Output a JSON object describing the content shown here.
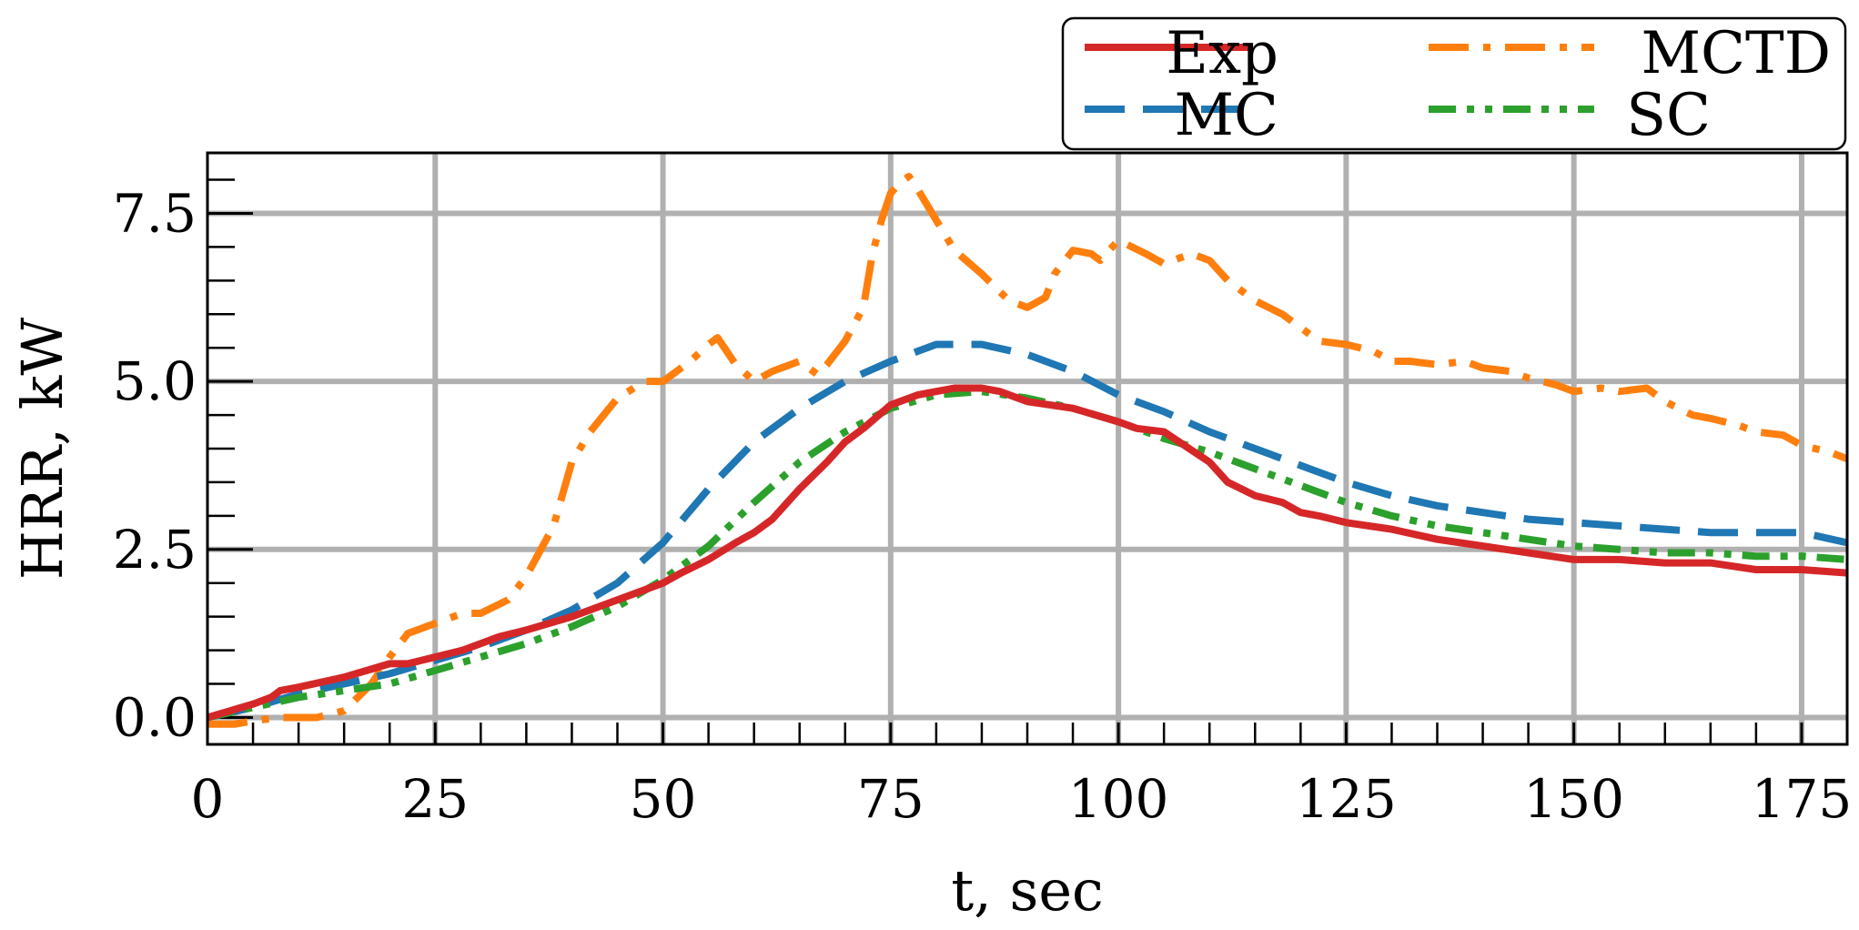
{
  "chart_data": {
    "type": "line",
    "title": "",
    "xlabel": "t, sec",
    "ylabel": "HRR, kW",
    "xlim": [
      0,
      180
    ],
    "ylim": [
      -0.4,
      8.4
    ],
    "xticks": [
      0,
      25,
      50,
      75,
      100,
      125,
      150,
      175
    ],
    "xtick_labels": [
      "0",
      "25",
      "50",
      "75",
      "100",
      "125",
      "150",
      "175"
    ],
    "yticks": [
      0.0,
      2.5,
      5.0,
      7.5
    ],
    "ytick_labels": [
      "0.0",
      "2.5",
      "5.0",
      "7.5"
    ],
    "grid": true,
    "legend_position": "top-right",
    "series": [
      {
        "name": "Exp",
        "color": "#d62728",
        "dash": "solid",
        "x": [
          0,
          5,
          7,
          8,
          10,
          15,
          20,
          22,
          25,
          28,
          30,
          32,
          35,
          40,
          45,
          50,
          52,
          55,
          58,
          60,
          62,
          65,
          68,
          70,
          72,
          75,
          78,
          80,
          82,
          85,
          87,
          90,
          95,
          100,
          102,
          105,
          110,
          112,
          115,
          118,
          120,
          122,
          125,
          130,
          135,
          140,
          145,
          150,
          155,
          160,
          165,
          170,
          175,
          180
        ],
        "y": [
          0.0,
          0.2,
          0.3,
          0.4,
          0.45,
          0.6,
          0.8,
          0.8,
          0.9,
          1.0,
          1.1,
          1.2,
          1.3,
          1.5,
          1.75,
          2.0,
          2.15,
          2.35,
          2.6,
          2.75,
          2.95,
          3.4,
          3.8,
          4.1,
          4.3,
          4.65,
          4.8,
          4.85,
          4.9,
          4.9,
          4.85,
          4.7,
          4.6,
          4.4,
          4.3,
          4.25,
          3.8,
          3.5,
          3.3,
          3.2,
          3.05,
          3.0,
          2.9,
          2.8,
          2.65,
          2.55,
          2.45,
          2.35,
          2.35,
          2.3,
          2.3,
          2.2,
          2.2,
          2.15
        ]
      },
      {
        "name": "MCTD",
        "color": "#ff7f0e",
        "dash": "dashdot",
        "x": [
          0,
          3,
          5,
          8,
          12,
          15,
          18,
          20,
          22,
          25,
          28,
          30,
          33,
          35,
          38,
          40,
          42,
          45,
          48,
          50,
          53,
          55,
          56,
          58,
          60,
          62,
          65,
          67,
          68,
          70,
          72,
          73,
          74,
          75,
          76,
          77,
          78,
          80,
          82,
          85,
          88,
          90,
          92,
          93,
          95,
          97,
          98,
          100,
          103,
          105,
          108,
          110,
          112,
          115,
          118,
          120,
          122,
          125,
          128,
          130,
          132,
          135,
          138,
          140,
          143,
          145,
          148,
          150,
          153,
          155,
          158,
          160,
          163,
          165,
          168,
          170,
          173,
          175,
          178,
          180
        ],
        "y": [
          -0.1,
          -0.1,
          -0.05,
          0.0,
          0.0,
          0.1,
          0.5,
          0.9,
          1.25,
          1.4,
          1.55,
          1.55,
          1.75,
          2.1,
          2.85,
          3.8,
          4.25,
          4.75,
          5.0,
          5.0,
          5.3,
          5.55,
          5.65,
          5.25,
          5.0,
          5.15,
          5.3,
          5.1,
          5.25,
          5.6,
          6.1,
          6.9,
          7.4,
          7.8,
          7.95,
          8.05,
          7.85,
          7.4,
          6.95,
          6.6,
          6.2,
          6.1,
          6.25,
          6.6,
          6.95,
          6.9,
          6.8,
          7.1,
          6.9,
          6.75,
          6.9,
          6.8,
          6.5,
          6.2,
          6.0,
          5.8,
          5.6,
          5.55,
          5.45,
          5.3,
          5.3,
          5.25,
          5.3,
          5.2,
          5.15,
          5.05,
          4.95,
          4.85,
          4.9,
          4.85,
          4.9,
          4.7,
          4.5,
          4.45,
          4.35,
          4.25,
          4.2,
          4.05,
          3.95,
          3.85
        ]
      },
      {
        "name": "MC",
        "color": "#1f77b4",
        "dash": "dashed",
        "x": [
          0,
          5,
          10,
          15,
          20,
          25,
          30,
          35,
          40,
          45,
          50,
          55,
          60,
          65,
          70,
          75,
          80,
          85,
          90,
          95,
          100,
          105,
          110,
          115,
          120,
          125,
          130,
          135,
          140,
          145,
          150,
          155,
          160,
          165,
          170,
          175,
          180
        ],
        "y": [
          0.0,
          0.15,
          0.35,
          0.5,
          0.65,
          0.85,
          1.05,
          1.3,
          1.6,
          2.0,
          2.6,
          3.4,
          4.1,
          4.6,
          5.0,
          5.3,
          5.55,
          5.55,
          5.4,
          5.15,
          4.8,
          4.55,
          4.25,
          4.0,
          3.75,
          3.5,
          3.3,
          3.15,
          3.05,
          2.95,
          2.9,
          2.85,
          2.8,
          2.75,
          2.75,
          2.75,
          2.6
        ]
      },
      {
        "name": "SC",
        "color": "#2ca02c",
        "dash": "dashdotdot",
        "x": [
          0,
          5,
          10,
          15,
          20,
          25,
          30,
          35,
          40,
          45,
          50,
          55,
          60,
          65,
          70,
          75,
          80,
          85,
          90,
          95,
          100,
          105,
          110,
          115,
          120,
          125,
          130,
          135,
          140,
          145,
          150,
          155,
          160,
          165,
          170,
          175,
          180
        ],
        "y": [
          0.0,
          0.15,
          0.3,
          0.4,
          0.5,
          0.7,
          0.9,
          1.1,
          1.35,
          1.65,
          2.05,
          2.55,
          3.2,
          3.8,
          4.25,
          4.6,
          4.8,
          4.85,
          4.75,
          4.6,
          4.4,
          4.15,
          3.95,
          3.7,
          3.45,
          3.2,
          3.0,
          2.85,
          2.75,
          2.65,
          2.55,
          2.5,
          2.45,
          2.45,
          2.4,
          2.4,
          2.35
        ]
      }
    ]
  }
}
